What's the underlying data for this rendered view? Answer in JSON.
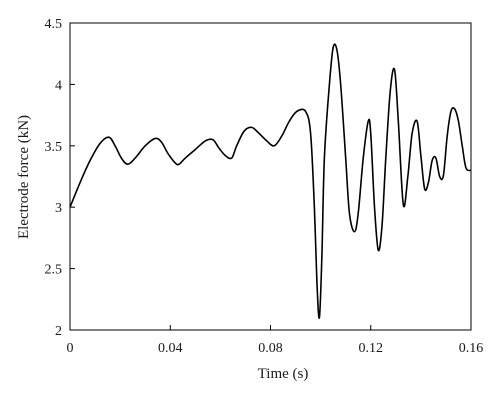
{
  "chart_data": {
    "type": "line",
    "title": "",
    "xlabel": "Time (s)",
    "ylabel": "Electrode force (kN)",
    "xlim": [
      0,
      0.16
    ],
    "ylim": [
      2,
      4.5
    ],
    "x_ticks": [
      "0",
      "0.04",
      "0.08",
      "0.12",
      "0.16"
    ],
    "x_tick_values": [
      0,
      0.04,
      0.08,
      0.12,
      0.16
    ],
    "y_ticks": [
      "2",
      "2.5",
      "3",
      "3.5",
      "4",
      "4.5"
    ],
    "y_tick_values": [
      2,
      2.5,
      3,
      3.5,
      4,
      4.5
    ],
    "grid": false,
    "legend": "none",
    "line_color": "#000000",
    "series": [
      {
        "x": [
          0,
          0.004,
          0.008,
          0.012,
          0.0155,
          0.018,
          0.0205,
          0.023,
          0.026,
          0.03,
          0.034,
          0.0365,
          0.039,
          0.042,
          0.0435,
          0.046,
          0.05,
          0.054,
          0.057,
          0.0595,
          0.062,
          0.0645,
          0.0665,
          0.0695,
          0.0725,
          0.0755,
          0.0785,
          0.0815,
          0.0845,
          0.0875,
          0.0905,
          0.094,
          0.096,
          0.0975,
          0.0985,
          0.0995,
          0.1005,
          0.1015,
          0.1035,
          0.105,
          0.1065,
          0.108,
          0.11,
          0.1115,
          0.1135,
          0.115,
          0.117,
          0.119,
          0.12,
          0.1215,
          0.123,
          0.1245,
          0.126,
          0.1278,
          0.1295,
          0.131,
          0.133,
          0.1348,
          0.1365,
          0.1385,
          0.14,
          0.1415,
          0.143,
          0.1445,
          0.146,
          0.1475,
          0.149,
          0.1505,
          0.152,
          0.1535,
          0.155,
          0.1565,
          0.158,
          0.16
        ],
        "y": [
          3.0,
          3.2,
          3.38,
          3.52,
          3.57,
          3.5,
          3.4,
          3.35,
          3.4,
          3.5,
          3.56,
          3.53,
          3.44,
          3.36,
          3.35,
          3.4,
          3.47,
          3.54,
          3.55,
          3.48,
          3.42,
          3.4,
          3.5,
          3.62,
          3.65,
          3.6,
          3.54,
          3.5,
          3.58,
          3.7,
          3.78,
          3.78,
          3.6,
          3.0,
          2.4,
          2.1,
          2.6,
          3.4,
          4.0,
          4.3,
          4.28,
          4.0,
          3.4,
          2.95,
          2.8,
          2.95,
          3.4,
          3.7,
          3.6,
          3.0,
          2.65,
          2.85,
          3.4,
          3.95,
          4.12,
          3.7,
          3.02,
          3.25,
          3.6,
          3.7,
          3.42,
          3.15,
          3.2,
          3.38,
          3.4,
          3.25,
          3.26,
          3.58,
          3.78,
          3.8,
          3.7,
          3.5,
          3.32,
          3.3
        ]
      }
    ]
  }
}
